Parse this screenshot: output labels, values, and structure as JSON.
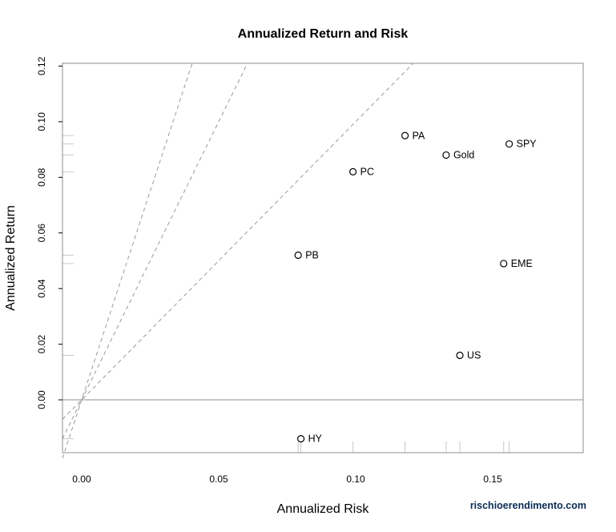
{
  "chart_data": {
    "type": "scatter",
    "title": "Annualized Return and Risk",
    "xlabel": "Annualized Risk",
    "ylabel": "Annualized Return",
    "xlim": [
      -0.007,
      0.183
    ],
    "ylim": [
      -0.019,
      0.121
    ],
    "xticks": [
      0.0,
      0.05,
      0.1,
      0.15
    ],
    "xtick_labels": [
      "0.00",
      "0.05",
      "0.10",
      "0.15"
    ],
    "yticks": [
      0.0,
      0.02,
      0.04,
      0.06,
      0.08,
      0.1,
      0.12
    ],
    "ytick_labels": [
      "0.00",
      "0.02",
      "0.04",
      "0.06",
      "0.08",
      "0.10",
      "0.12"
    ],
    "points": [
      {
        "label": "PA",
        "x": 0.118,
        "y": 0.095
      },
      {
        "label": "Gold",
        "x": 0.133,
        "y": 0.088
      },
      {
        "label": "SPY",
        "x": 0.156,
        "y": 0.092
      },
      {
        "label": "PC",
        "x": 0.099,
        "y": 0.082
      },
      {
        "label": "PB",
        "x": 0.079,
        "y": 0.052
      },
      {
        "label": "EME",
        "x": 0.154,
        "y": 0.049
      },
      {
        "label": "US",
        "x": 0.138,
        "y": 0.016
      },
      {
        "label": "HY",
        "x": 0.08,
        "y": -0.014
      }
    ],
    "reference_lines": [
      {
        "type": "hline",
        "y": 0.0,
        "style": "solid"
      },
      {
        "type": "ray",
        "slope": 3.0,
        "style": "dashed"
      },
      {
        "type": "ray",
        "slope": 2.0,
        "style": "dashed"
      },
      {
        "type": "ray",
        "slope": 1.0,
        "style": "dashed"
      }
    ],
    "rug": true
  },
  "watermark": "rischioerendimento.com"
}
